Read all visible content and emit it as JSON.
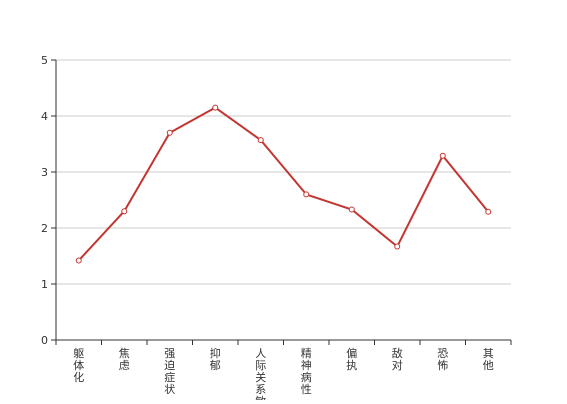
{
  "chart_data": {
    "type": "line",
    "categories": [
      "躯体化",
      "焦虑",
      "强迫症状",
      "抑郁",
      "人际关系敏感",
      "精神病性",
      "偏执",
      "敌对",
      "恐怖",
      "其他"
    ],
    "series": [
      {
        "values": [
          1.42,
          2.3,
          3.7,
          4.15,
          3.57,
          2.6,
          2.33,
          1.67,
          3.29,
          2.29
        ],
        "color": "#c23531"
      }
    ],
    "ylim": [
      0,
      5
    ],
    "yticks": [
      0,
      1,
      2,
      3,
      4,
      5
    ],
    "grid": true,
    "legend": "none",
    "title": "",
    "xlabel": "",
    "ylabel": ""
  }
}
